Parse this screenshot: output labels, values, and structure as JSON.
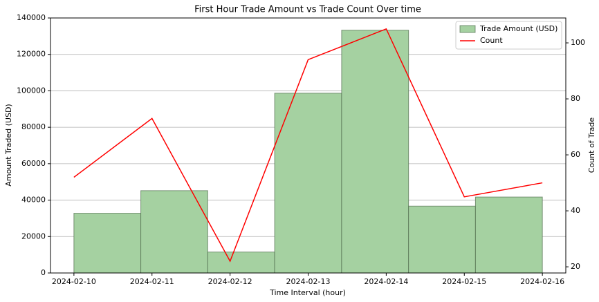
{
  "chart_data": {
    "type": "bar",
    "title": "First Hour Trade Amount vs Trade Count Over time",
    "xlabel": "Time Interval (hour)",
    "ylabel": "Amount Traded (USD)",
    "y2label": "Count of Trade",
    "xlim": [
      -0.3,
      6.3
    ],
    "xticks": [
      {
        "value": 0,
        "label": "2024-02-10"
      },
      {
        "value": 1,
        "label": "2024-02-11"
      },
      {
        "value": 2,
        "label": "2024-02-12"
      },
      {
        "value": 3,
        "label": "2024-02-13"
      },
      {
        "value": 4,
        "label": "2024-02-14"
      },
      {
        "value": 5,
        "label": "2024-02-15"
      },
      {
        "value": 6,
        "label": "2024-02-16"
      }
    ],
    "ylim": [
      0,
      140000
    ],
    "yticks": [
      0,
      20000,
      40000,
      60000,
      80000,
      100000,
      120000,
      140000
    ],
    "y2lim": [
      17.8,
      108.9
    ],
    "y2ticks": [
      20,
      40,
      60,
      80,
      100
    ],
    "grid": true,
    "legend": "upper right",
    "bins": [
      0,
      0.857,
      1.714,
      2.571,
      3.429,
      4.286,
      5.143,
      6
    ],
    "x": [
      0,
      1,
      2,
      3,
      4,
      5,
      6
    ],
    "series": [
      {
        "name": "Trade Amount (USD)",
        "type": "histogram",
        "color": "#a5d1a1",
        "values": [
          32800,
          45200,
          11500,
          98700,
          133300,
          36700,
          41700
        ]
      },
      {
        "name": "Count",
        "type": "line",
        "color": "#ff0000",
        "axis": "y2",
        "values": [
          52,
          73,
          22,
          94,
          105,
          45,
          50
        ]
      }
    ]
  }
}
